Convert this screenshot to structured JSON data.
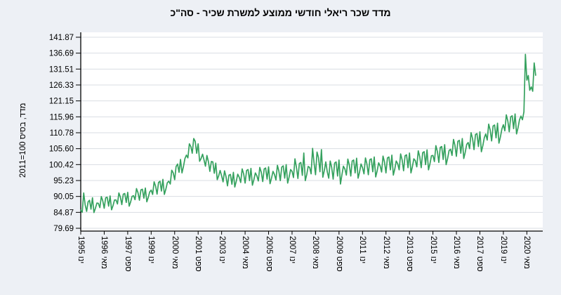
{
  "page": {
    "background": "#edf0f5"
  },
  "chart": {
    "title": "מדד שכר ריאלי חודשי ממוצע למשרת שכיר - סה\"כ",
    "y_axis_title": "מדד, בסיס 100=2011",
    "line_color": "#35a15e",
    "grid_color": "#d9dde3",
    "axis_color": "#000000",
    "plot_bg": "#ffffff",
    "text_color": "#000000"
  },
  "chart_data": {
    "type": "line",
    "title": "מדד שכר ריאלי חודשי ממוצע למשרת שכיר - סה\"כ",
    "xlabel": "",
    "ylabel": "מדד, בסיס 100=2011",
    "ylim": [
      79.69,
      141.87
    ],
    "grid": true,
    "legend": false,
    "frequency": "monthly",
    "x_start": "1995-01",
    "x_end": "2020-11",
    "y_ticks": [
      "141.87",
      "136.69",
      "131.51",
      "126.33",
      "121.15",
      "115.96",
      "110.78",
      "105.60",
      "100.42",
      "95.23",
      "90.05",
      "84.87",
      "79.69"
    ],
    "x_tick_indices": [
      0,
      16,
      32,
      48,
      64,
      80,
      96,
      112,
      128,
      144,
      160,
      176,
      192,
      208,
      224,
      240,
      256,
      272,
      288,
      304
    ],
    "x_tick_labels": [
      "ינו 1995",
      "מאי 1996",
      "ספט 1997",
      "ינו 1999",
      "מאי 2000",
      "ספט 2001",
      "ינו 2003",
      "מאי 2004",
      "ספט 2005",
      "ינו 2007",
      "מאי 2008",
      "ספט 2009",
      "ינו 2011",
      "מאי 2012",
      "ספט 2013",
      "ינו 2015",
      "מאי 2016",
      "ספט 2017",
      "ינו 2019",
      "מאי 2020"
    ],
    "values": [
      85.6,
      84.9,
      91.2,
      87.3,
      85.2,
      88.3,
      88.8,
      85.9,
      89.6,
      84.8,
      86.2,
      87.9,
      87.8,
      86.4,
      90.0,
      88.7,
      86.2,
      89.6,
      89.8,
      86.9,
      90.2,
      85.7,
      87.1,
      88.9,
      88.9,
      87.6,
      91.2,
      89.9,
      87.4,
      90.8,
      91.0,
      88.1,
      91.4,
      86.9,
      88.3,
      90.1,
      90.3,
      89.0,
      92.6,
      91.3,
      88.8,
      92.2,
      92.4,
      89.5,
      92.8,
      88.3,
      89.7,
      91.5,
      92.1,
      90.7,
      94.8,
      93.4,
      90.8,
      94.6,
      95.0,
      91.8,
      95.6,
      90.7,
      92.4,
      94.5,
      95.0,
      94.1,
      98.6,
      97.7,
      95.5,
      99.8,
      100.6,
      97.9,
      102.1,
      97.7,
      99.8,
      102.4,
      103.5,
      102.6,
      107.2,
      106.3,
      104.1,
      108.9,
      108.0,
      104.1,
      107.2,
      101.5,
      102.4,
      103.8,
      101.9,
      99.9,
      103.4,
      101.4,
      98.2,
      101.4,
      101.3,
      97.6,
      100.9,
      95.5,
      96.8,
      98.5,
      96.8,
      94.8,
      98.4,
      96.5,
      93.5,
      97.0,
      97.2,
      94.0,
      97.9,
      93.1,
      95.0,
      97.3,
      96.3,
      94.6,
      99.0,
      97.4,
      94.4,
      98.5,
      98.8,
      95.2,
      99.2,
      93.7,
      95.5,
      97.7,
      96.8,
      95.1,
      99.5,
      97.9,
      94.9,
      99.0,
      99.3,
      95.7,
      99.7,
      94.2,
      96.0,
      98.2,
      97.2,
      95.4,
      100.2,
      98.4,
      95.2,
      99.6,
      100.0,
      96.0,
      100.4,
      94.4,
      96.4,
      98.8,
      98.2,
      96.2,
      102.3,
      99.5,
      95.9,
      100.8,
      101.1,
      96.9,
      104.2,
      95.2,
      97.2,
      99.8,
      99.5,
      97.4,
      105.7,
      100.9,
      97.1,
      104.5,
      102.7,
      98.1,
      105.3,
      96.3,
      98.5,
      101.3,
      98.1,
      96.0,
      101.6,
      99.5,
      95.7,
      100.9,
      101.3,
      96.7,
      101.9,
      94.1,
      97.1,
      99.9,
      99.0,
      97.0,
      102.2,
      100.3,
      96.7,
      101.6,
      101.9,
      97.7,
      102.5,
      96.0,
      98.0,
      100.6,
      99.4,
      97.4,
      102.6,
      100.7,
      97.1,
      102.0,
      102.3,
      98.1,
      102.9,
      96.4,
      98.4,
      101.0,
      100.0,
      98.0,
      103.2,
      101.3,
      97.7,
      102.6,
      102.9,
      98.7,
      103.5,
      97.0,
      99.0,
      101.6,
      100.7,
      98.7,
      103.9,
      102.0,
      98.4,
      103.3,
      103.6,
      99.4,
      104.2,
      97.7,
      99.7,
      102.3,
      101.7,
      99.7,
      104.9,
      103.0,
      99.4,
      104.3,
      104.6,
      100.4,
      105.2,
      98.7,
      100.7,
      103.3,
      103.4,
      101.4,
      106.6,
      104.7,
      101.1,
      106.0,
      106.3,
      102.1,
      106.9,
      100.4,
      102.4,
      105.0,
      105.4,
      103.4,
      108.6,
      106.7,
      103.1,
      108.0,
      108.3,
      104.1,
      108.9,
      102.4,
      104.4,
      107.0,
      107.6,
      105.6,
      110.8,
      108.9,
      105.3,
      110.2,
      110.5,
      106.3,
      111.1,
      104.6,
      106.6,
      109.2,
      110.4,
      108.4,
      113.6,
      111.7,
      108.1,
      113.0,
      113.3,
      109.1,
      113.9,
      107.4,
      109.4,
      112.0,
      113.4,
      111.4,
      116.6,
      114.7,
      111.1,
      116.0,
      116.3,
      112.1,
      116.9,
      110.4,
      112.4,
      115.0,
      116.2,
      115.0,
      117.6,
      136.3,
      127.9,
      129.4,
      124.6,
      125.7,
      124.3,
      133.5,
      129.5
    ]
  }
}
